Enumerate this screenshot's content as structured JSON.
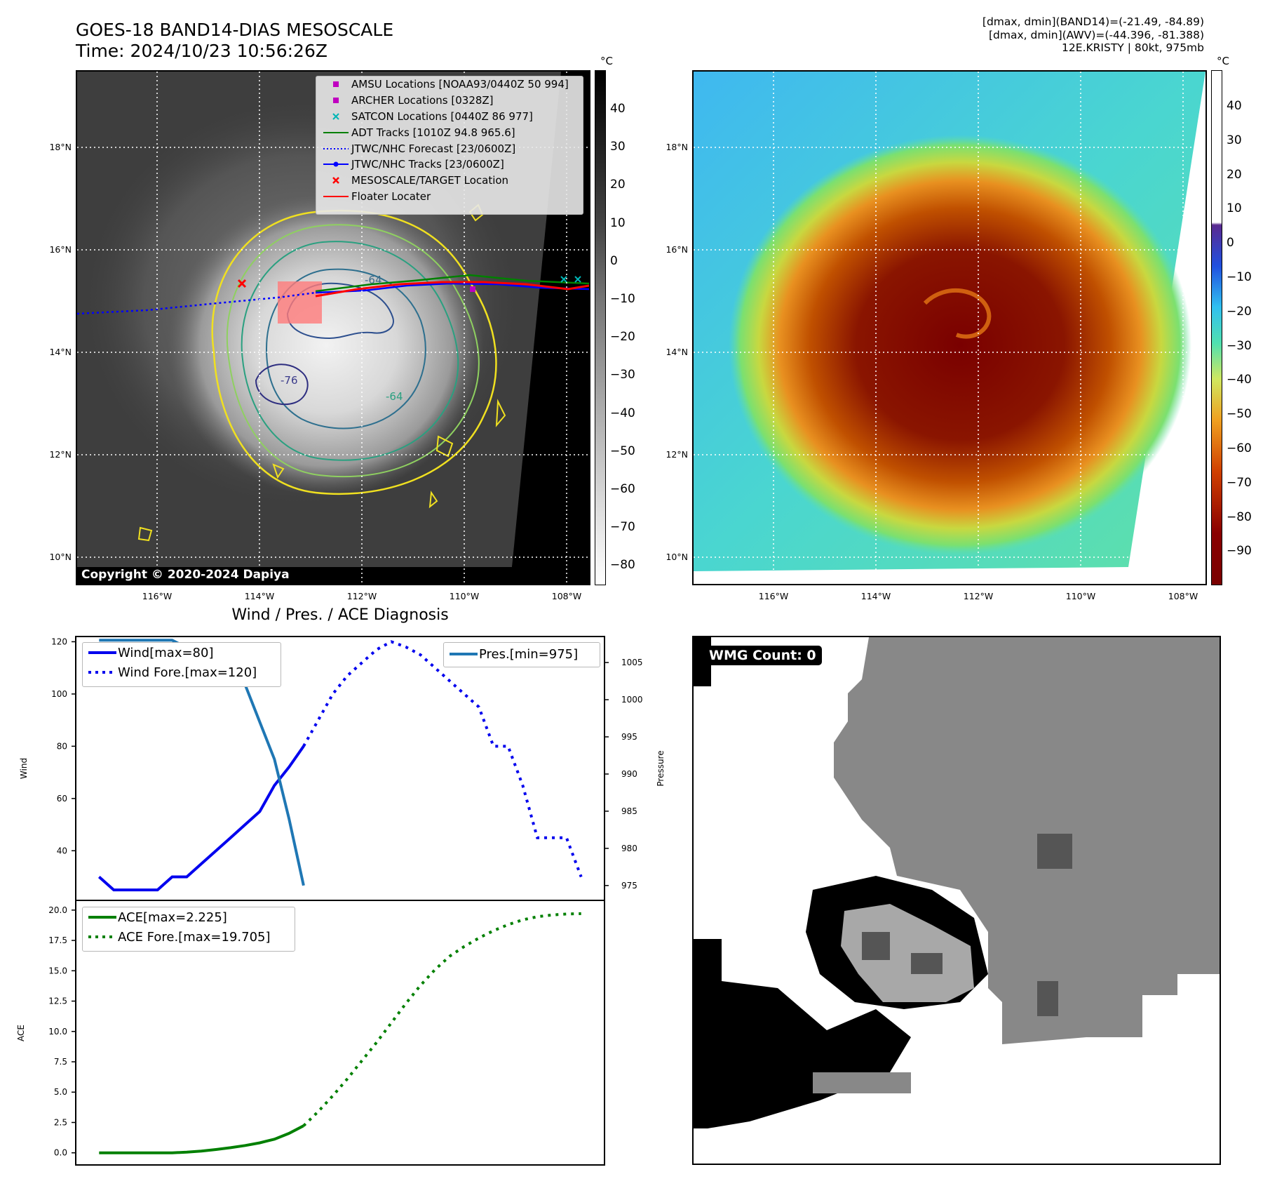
{
  "header": {
    "title": "GOES-18 BAND14-DIAS MESOSCALE",
    "time": "Time: 2024/10/23 10:56:26Z",
    "stat_band14": "[dmax, dmin](BAND14)=(-21.49, -84.89)",
    "stat_awv": "[dmax, dmin](AWV)=(-44.396, -81.388)",
    "storm": "12E.KRISTY | 80kt, 975mb"
  },
  "map_axes": {
    "lon_ticks": [
      "116°W",
      "114°W",
      "112°W",
      "110°W",
      "108°W"
    ],
    "lat_ticks": [
      "18°N",
      "16°N",
      "14°N",
      "12°N",
      "10°N"
    ]
  },
  "ir_panel": {
    "colorbar_unit": "°C",
    "colorbar_ticks": [
      "40",
      "30",
      "20",
      "10",
      "0",
      "−10",
      "−20",
      "−30",
      "−40",
      "−50",
      "−60",
      "−70",
      "−80"
    ],
    "copyright": "Copyright © 2020-2024 Dapiya",
    "contour_labels": [
      "-64",
      "-76",
      "-64"
    ],
    "legend": [
      {
        "label": "AMSU Locations [NOAA93/0440Z 50 994]",
        "symbol": "square",
        "color": "#c000c0"
      },
      {
        "label": "ARCHER Locations [0328Z]",
        "symbol": "square",
        "color": "#c000c0"
      },
      {
        "label": "SATCON Locations [0440Z 86 977]",
        "symbol": "x",
        "color": "#00b5b5"
      },
      {
        "label": "ADT Tracks [1010Z 94.8 965.6]",
        "symbol": "line",
        "color": "#008000"
      },
      {
        "label": "JTWC/NHC Forecast [23/0600Z]",
        "symbol": "dotted",
        "color": "#0000ff"
      },
      {
        "label": "JTWC/NHC Tracks [23/0600Z]",
        "symbol": "line-dot",
        "color": "#0000ff"
      },
      {
        "label": "MESOSCALE/TARGET Location",
        "symbol": "x",
        "color": "#ff0000"
      },
      {
        "label": "Floater Locater",
        "symbol": "line",
        "color": "#ff0000"
      }
    ]
  },
  "awv_panel": {
    "colorbar_unit": "°C",
    "colorbar_ticks": [
      "40",
      "30",
      "20",
      "10",
      "0",
      "−10",
      "−20",
      "−30",
      "−40",
      "−50",
      "−60",
      "−70",
      "−80",
      "−90"
    ]
  },
  "diag_title": "Wind / Pres. / ACE Diagnosis",
  "wmg_label": "WMG Count: 0",
  "chart_data": [
    {
      "type": "line",
      "title": "Wind / Pres. / ACE Diagnosis",
      "ylabel": "Wind",
      "ylabel2": "Pressure",
      "ylim": [
        21,
        122
      ],
      "ylim2": [
        973,
        1008.5
      ],
      "yticks": [
        40,
        60,
        80,
        100,
        120
      ],
      "yticks2": [
        975,
        980,
        985,
        990,
        995,
        1000,
        1005
      ],
      "xlim": [
        -1.6,
        34.6
      ],
      "series": [
        {
          "name": "Wind[max=80]",
          "style": "solid",
          "color": "#0000ee",
          "axis": "left",
          "x": [
            0,
            1,
            2,
            3,
            4,
            5,
            6,
            7,
            8,
            9,
            10,
            11,
            12,
            13,
            14
          ],
          "values": [
            30,
            25,
            25,
            25,
            25,
            30,
            30,
            35,
            40,
            45,
            50,
            55,
            65,
            72,
            80
          ]
        },
        {
          "name": "Wind Fore.[max=120]",
          "style": "dotted",
          "color": "#0000ee",
          "axis": "left",
          "x": [
            14,
            15,
            16,
            17,
            18,
            19,
            20,
            21,
            22,
            23,
            24,
            25,
            26,
            27,
            28,
            29,
            30,
            31,
            32,
            33
          ],
          "values": [
            80,
            90,
            100,
            107,
            112,
            117,
            120,
            118,
            115,
            110,
            105,
            100,
            95,
            80,
            80,
            65,
            45,
            45,
            45,
            30
          ]
        },
        {
          "name": "Pres.[min=975]",
          "style": "solid",
          "color": "#1f77b4",
          "axis": "right",
          "x": [
            0,
            1,
            2,
            3,
            4,
            5,
            6,
            7,
            8,
            9,
            10,
            11,
            12,
            13,
            14
          ],
          "values": [
            1008,
            1008,
            1008,
            1008,
            1008,
            1008,
            1007,
            1007,
            1006,
            1004,
            1002,
            997,
            992,
            984,
            975
          ]
        }
      ]
    },
    {
      "type": "line",
      "ylabel": "ACE",
      "ylim": [
        -1.0,
        20.8
      ],
      "yticks": [
        0.0,
        2.5,
        5.0,
        7.5,
        10.0,
        12.5,
        15.0,
        17.5,
        20.0
      ],
      "xlim": [
        -1.6,
        34.6
      ],
      "series": [
        {
          "name": "ACE[max=2.225]",
          "style": "solid",
          "color": "#008000",
          "x": [
            0,
            1,
            2,
            3,
            4,
            5,
            6,
            7,
            8,
            9,
            10,
            11,
            12,
            13,
            14
          ],
          "values": [
            0,
            0,
            0,
            0,
            0,
            0,
            0.05,
            0.14,
            0.27,
            0.42,
            0.6,
            0.82,
            1.12,
            1.6,
            2.225
          ]
        },
        {
          "name": "ACE Fore.[max=19.705]",
          "style": "dotted",
          "color": "#008000",
          "x": [
            14,
            15,
            16,
            17,
            18,
            19,
            20,
            21,
            22,
            23,
            24,
            25,
            26,
            27,
            28,
            29,
            30,
            31,
            32,
            33
          ],
          "values": [
            2.225,
            3.4,
            4.7,
            6.1,
            7.6,
            9.1,
            10.7,
            12.3,
            13.8,
            15.1,
            16.2,
            17.0,
            17.7,
            18.3,
            18.8,
            19.2,
            19.45,
            19.6,
            19.68,
            19.705
          ]
        }
      ]
    }
  ]
}
